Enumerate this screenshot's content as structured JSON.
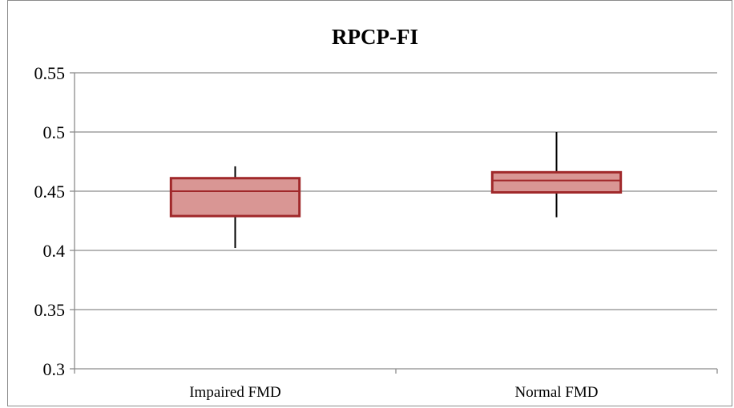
{
  "chart_data": {
    "type": "box",
    "title": "RPCP-FI",
    "xlabel": "",
    "ylabel": "",
    "ylim": [
      0.3,
      0.55
    ],
    "yticks": [
      "0.3",
      "0.35",
      "0.4",
      "0.45",
      "0.5",
      "0.55"
    ],
    "grid": true,
    "categories": [
      "Impaired FMD",
      "Normal FMD"
    ],
    "boxes": [
      {
        "min": 0.402,
        "q1": 0.429,
        "median": 0.45,
        "q3": 0.461,
        "max": 0.471
      },
      {
        "min": 0.428,
        "q1": 0.449,
        "median": 0.459,
        "q3": 0.466,
        "max": 0.5
      }
    ],
    "colors": {
      "box_fill": "#d99694",
      "box_stroke": "#a0282a",
      "whisker": "#000000",
      "grid": "#8c8c8c"
    }
  }
}
